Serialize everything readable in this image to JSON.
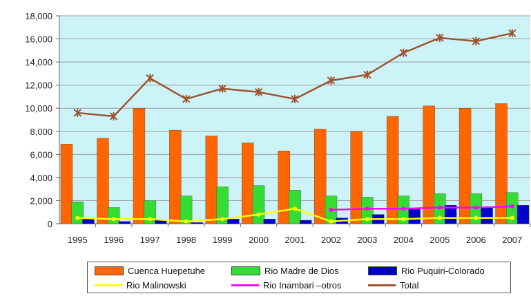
{
  "chart_data": {
    "type": "bar",
    "categories": [
      "1995",
      "1996",
      "1997",
      "1998",
      "1999",
      "2000",
      "2001",
      "2002",
      "2003",
      "2004",
      "2005",
      "2006",
      "2007"
    ],
    "ylim": [
      0,
      18000
    ],
    "yticks": [
      "0",
      "2,000",
      "4,000",
      "6,000",
      "8,000",
      "10,000",
      "12,000",
      "14,000",
      "16,000",
      "18,000"
    ],
    "ytick_values": [
      0,
      2000,
      4000,
      6000,
      8000,
      10000,
      12000,
      14000,
      16000,
      18000
    ],
    "grid": true,
    "legend_position": "bottom",
    "series": [
      {
        "name": "Cuenca Huepetuhe",
        "type": "bar",
        "color": "#ff6600",
        "values": [
          6900,
          7400,
          10000,
          8100,
          7600,
          7000,
          6300,
          8200,
          8000,
          9300,
          10200,
          10000,
          10400
        ]
      },
      {
        "name": "Rio Madre de Dios",
        "type": "bar",
        "color": "#33dd33",
        "values": [
          1900,
          1400,
          2000,
          2400,
          3200,
          3300,
          2900,
          2400,
          2300,
          2400,
          2600,
          2600,
          2700
        ]
      },
      {
        "name": "Rio Puquiri-Colorado",
        "type": "bar",
        "color": "#0000cc",
        "values": [
          400,
          200,
          300,
          100,
          400,
          400,
          300,
          500,
          800,
          1300,
          1600,
          1400,
          1600
        ]
      },
      {
        "name": "Rio Malinowski",
        "type": "line",
        "color": "#ffff00",
        "values": [
          500,
          400,
          400,
          200,
          400,
          800,
          1300,
          200,
          400,
          400,
          500,
          500,
          500
        ]
      },
      {
        "name": "Rio Inambari –otros",
        "type": "line",
        "color": "#ff00ff",
        "values": [
          null,
          null,
          null,
          null,
          null,
          null,
          null,
          1200,
          1300,
          1300,
          1400,
          1400,
          1500
        ]
      },
      {
        "name": "Total",
        "type": "line",
        "color": "#a0522d",
        "values": [
          9600,
          9300,
          12600,
          10800,
          11700,
          11400,
          10800,
          12400,
          12900,
          14800,
          16100,
          15800,
          16500
        ]
      }
    ],
    "colors": {
      "plot_background": "#ccf4f8",
      "gridline": "#9a9a9a",
      "axis": "#666666"
    }
  }
}
